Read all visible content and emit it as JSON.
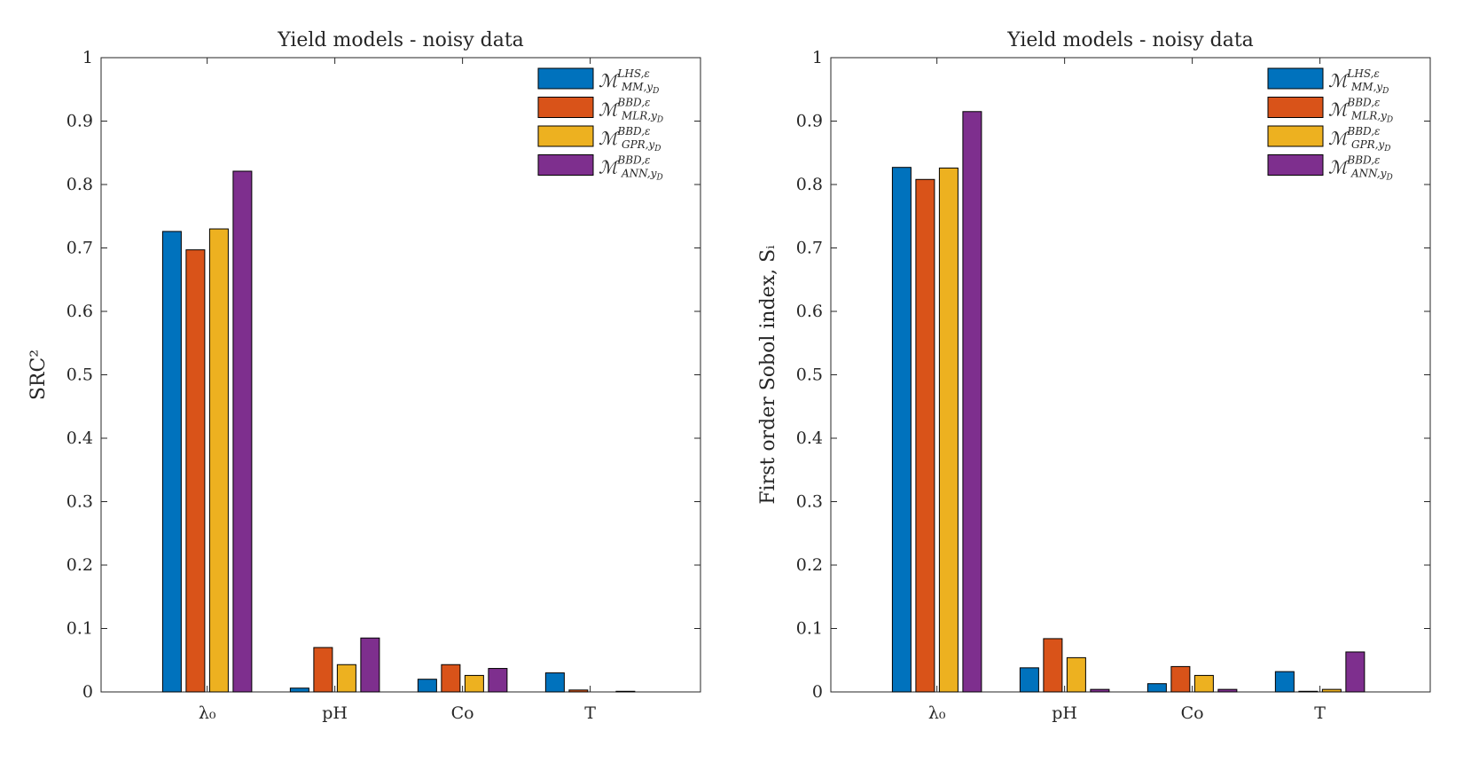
{
  "chart_data": [
    {
      "type": "bar",
      "title": "Yield models - noisy data",
      "xlabel": "",
      "ylabel": "SRC²",
      "ylim": [
        0,
        1
      ],
      "yticks": [
        "0",
        "0.1",
        "0.2",
        "0.3",
        "0.4",
        "0.5",
        "0.6",
        "0.7",
        "0.8",
        "0.9",
        "1"
      ],
      "categories": [
        "λ₀",
        "pH",
        "Co",
        "T"
      ],
      "legend_position": "top-right",
      "series": [
        {
          "name": "ℳ LHS,ε MM,yD",
          "color": "#0072BD",
          "values": [
            0.726,
            0.006,
            0.02,
            0.03
          ]
        },
        {
          "name": "ℳ BBD,ε MLR,yD",
          "color": "#D95319",
          "values": [
            0.697,
            0.07,
            0.043,
            0.003
          ]
        },
        {
          "name": "ℳ BBD,ε GPR,yD",
          "color": "#EDB120",
          "values": [
            0.73,
            0.043,
            0.026,
            0.0
          ]
        },
        {
          "name": "ℳ BBD,ε ANN,yD",
          "color": "#7E2F8E",
          "values": [
            0.821,
            0.085,
            0.037,
            0.001
          ]
        }
      ]
    },
    {
      "type": "bar",
      "title": "Yield models - noisy data",
      "xlabel": "",
      "ylabel": "First order Sobol index, Sᵢ",
      "ylim": [
        0,
        1
      ],
      "yticks": [
        "0",
        "0.1",
        "0.2",
        "0.3",
        "0.4",
        "0.5",
        "0.6",
        "0.7",
        "0.8",
        "0.9",
        "1"
      ],
      "categories": [
        "λ₀",
        "pH",
        "Co",
        "T"
      ],
      "legend_position": "top-right",
      "series": [
        {
          "name": "ℳ LHS,ε MM,yD",
          "color": "#0072BD",
          "values": [
            0.827,
            0.038,
            0.013,
            0.032
          ]
        },
        {
          "name": "ℳ BBD,ε MLR,yD",
          "color": "#D95319",
          "values": [
            0.808,
            0.084,
            0.04,
            0.001
          ]
        },
        {
          "name": "ℳ BBD,ε GPR,yD",
          "color": "#EDB120",
          "values": [
            0.826,
            0.054,
            0.026,
            0.004
          ]
        },
        {
          "name": "ℳ BBD,ε ANN,yD",
          "color": "#7E2F8E",
          "values": [
            0.915,
            0.004,
            0.004,
            0.063
          ]
        }
      ]
    }
  ],
  "legend": {
    "script": "ℳ",
    "entries": [
      {
        "sup": "LHS,ε",
        "sub": "MM,y",
        "subsub": "D"
      },
      {
        "sup": "BBD,ε",
        "sub": "MLR,y",
        "subsub": "D"
      },
      {
        "sup": "BBD,ε",
        "sub": "GPR,y",
        "subsub": "D"
      },
      {
        "sup": "BBD,ε",
        "sub": "ANN,y",
        "subsub": "D"
      }
    ]
  }
}
